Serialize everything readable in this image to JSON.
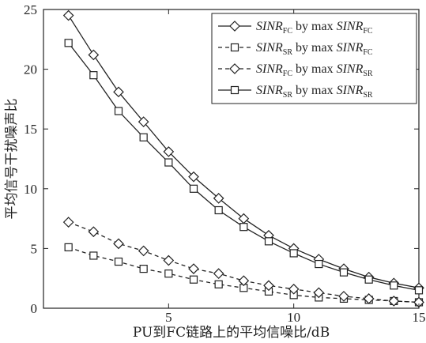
{
  "chart_data": {
    "type": "line",
    "xlabel": "PU到FC链路上的平均信噪比/dB",
    "ylabel": "平均信号干扰噪声比",
    "xlim": [
      0,
      15
    ],
    "ylim": [
      0,
      25
    ],
    "xticks": [
      "5",
      "10",
      "15"
    ],
    "yticks": [
      "0",
      "5",
      "10",
      "15",
      "20",
      "25"
    ],
    "grid": false,
    "legend_position": "top-right",
    "series": [
      {
        "name": "SINR_FC by max SINR_FC",
        "label_main": "SINR",
        "label_sub": "FC",
        "label_mid": " by max ",
        "label_main2": "SINR",
        "label_sub2": "FC",
        "marker": "diamond",
        "linestyle": "solid",
        "x": [
          1,
          2,
          3,
          4,
          5,
          6,
          7,
          8,
          9,
          10,
          11,
          12,
          13,
          14,
          15
        ],
        "values": [
          24.5,
          21.2,
          18.1,
          15.6,
          13.1,
          11.0,
          9.2,
          7.5,
          6.1,
          5.0,
          4.1,
          3.3,
          2.6,
          2.1,
          1.7
        ]
      },
      {
        "name": "SINR_SR by max SINR_FC",
        "label_main": "SINR",
        "label_sub": "SR",
        "label_mid": " by max ",
        "label_main2": "SINR",
        "label_sub2": "FC",
        "marker": "square",
        "linestyle": "dashed",
        "x": [
          1,
          2,
          3,
          4,
          5,
          6,
          7,
          8,
          9,
          10,
          11,
          12,
          13,
          14,
          15
        ],
        "values": [
          5.1,
          4.4,
          3.9,
          3.3,
          2.9,
          2.4,
          2.0,
          1.7,
          1.4,
          1.1,
          0.9,
          0.8,
          0.7,
          0.6,
          0.5
        ]
      },
      {
        "name": "SINR_FC by max SINR_SR",
        "label_main": "SINR",
        "label_sub": "FC",
        "label_mid": " by max ",
        "label_main2": "SINR",
        "label_sub2": "SR",
        "marker": "diamond",
        "linestyle": "dashed",
        "x": [
          1,
          2,
          3,
          4,
          5,
          6,
          7,
          8,
          9,
          10,
          11,
          12,
          13,
          14,
          15
        ],
        "values": [
          7.2,
          6.4,
          5.4,
          4.8,
          4.0,
          3.3,
          2.9,
          2.3,
          1.9,
          1.6,
          1.3,
          1.0,
          0.8,
          0.6,
          0.5
        ]
      },
      {
        "name": "SINR_SR by max SINR_SR",
        "label_main": "SINR",
        "label_sub": "SR",
        "label_mid": " by max ",
        "label_main2": "SINR",
        "label_sub2": "SR",
        "marker": "square",
        "linestyle": "solid",
        "x": [
          1,
          2,
          3,
          4,
          5,
          6,
          7,
          8,
          9,
          10,
          11,
          12,
          13,
          14,
          15
        ],
        "values": [
          22.2,
          19.5,
          16.5,
          14.3,
          12.2,
          10.0,
          8.2,
          6.8,
          5.6,
          4.6,
          3.7,
          3.0,
          2.4,
          1.9,
          1.5
        ]
      }
    ]
  }
}
